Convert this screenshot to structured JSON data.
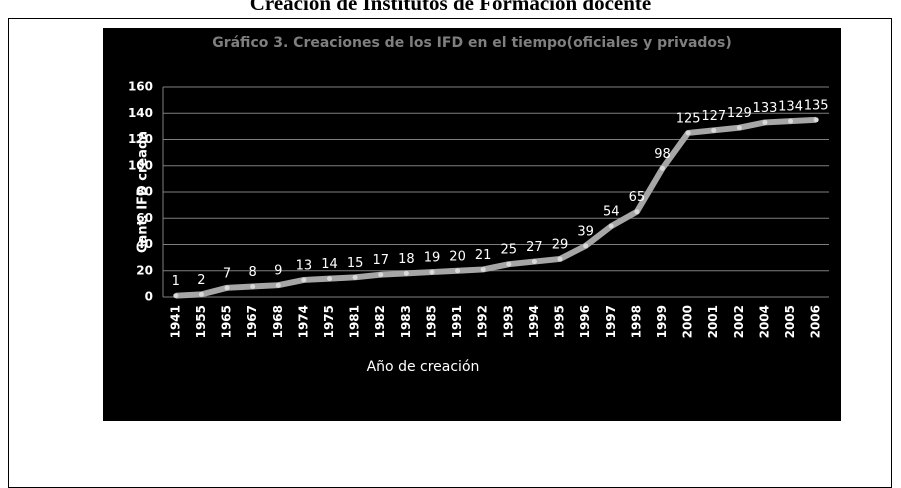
{
  "heading": "Creación de Institutos de Formación docente",
  "chart_data": {
    "type": "line",
    "title": "Gráfico 3. Creaciones de los IFD en el tiempo(oficiales y privados)",
    "x_label": "Año de creación",
    "y_label": "Cant. IFD creada",
    "categories": [
      "1941",
      "1955",
      "1965",
      "1967",
      "1968",
      "1974",
      "1975",
      "1981",
      "1982",
      "1983",
      "1985",
      "1991",
      "1992",
      "1993",
      "1994",
      "1995",
      "1996",
      "1997",
      "1998",
      "1999",
      "2000",
      "2001",
      "2002",
      "2004",
      "2005",
      "2006"
    ],
    "values": [
      1,
      2,
      7,
      8,
      9,
      13,
      14,
      15,
      17,
      18,
      19,
      20,
      21,
      25,
      27,
      29,
      39,
      54,
      65,
      98,
      125,
      127,
      129,
      133,
      134,
      135
    ],
    "color": "#a6a6a6",
    "ylim": [
      0,
      160
    ],
    "yticks": [
      0,
      20,
      40,
      60,
      80,
      100,
      120,
      140,
      160
    ],
    "grid": true
  }
}
